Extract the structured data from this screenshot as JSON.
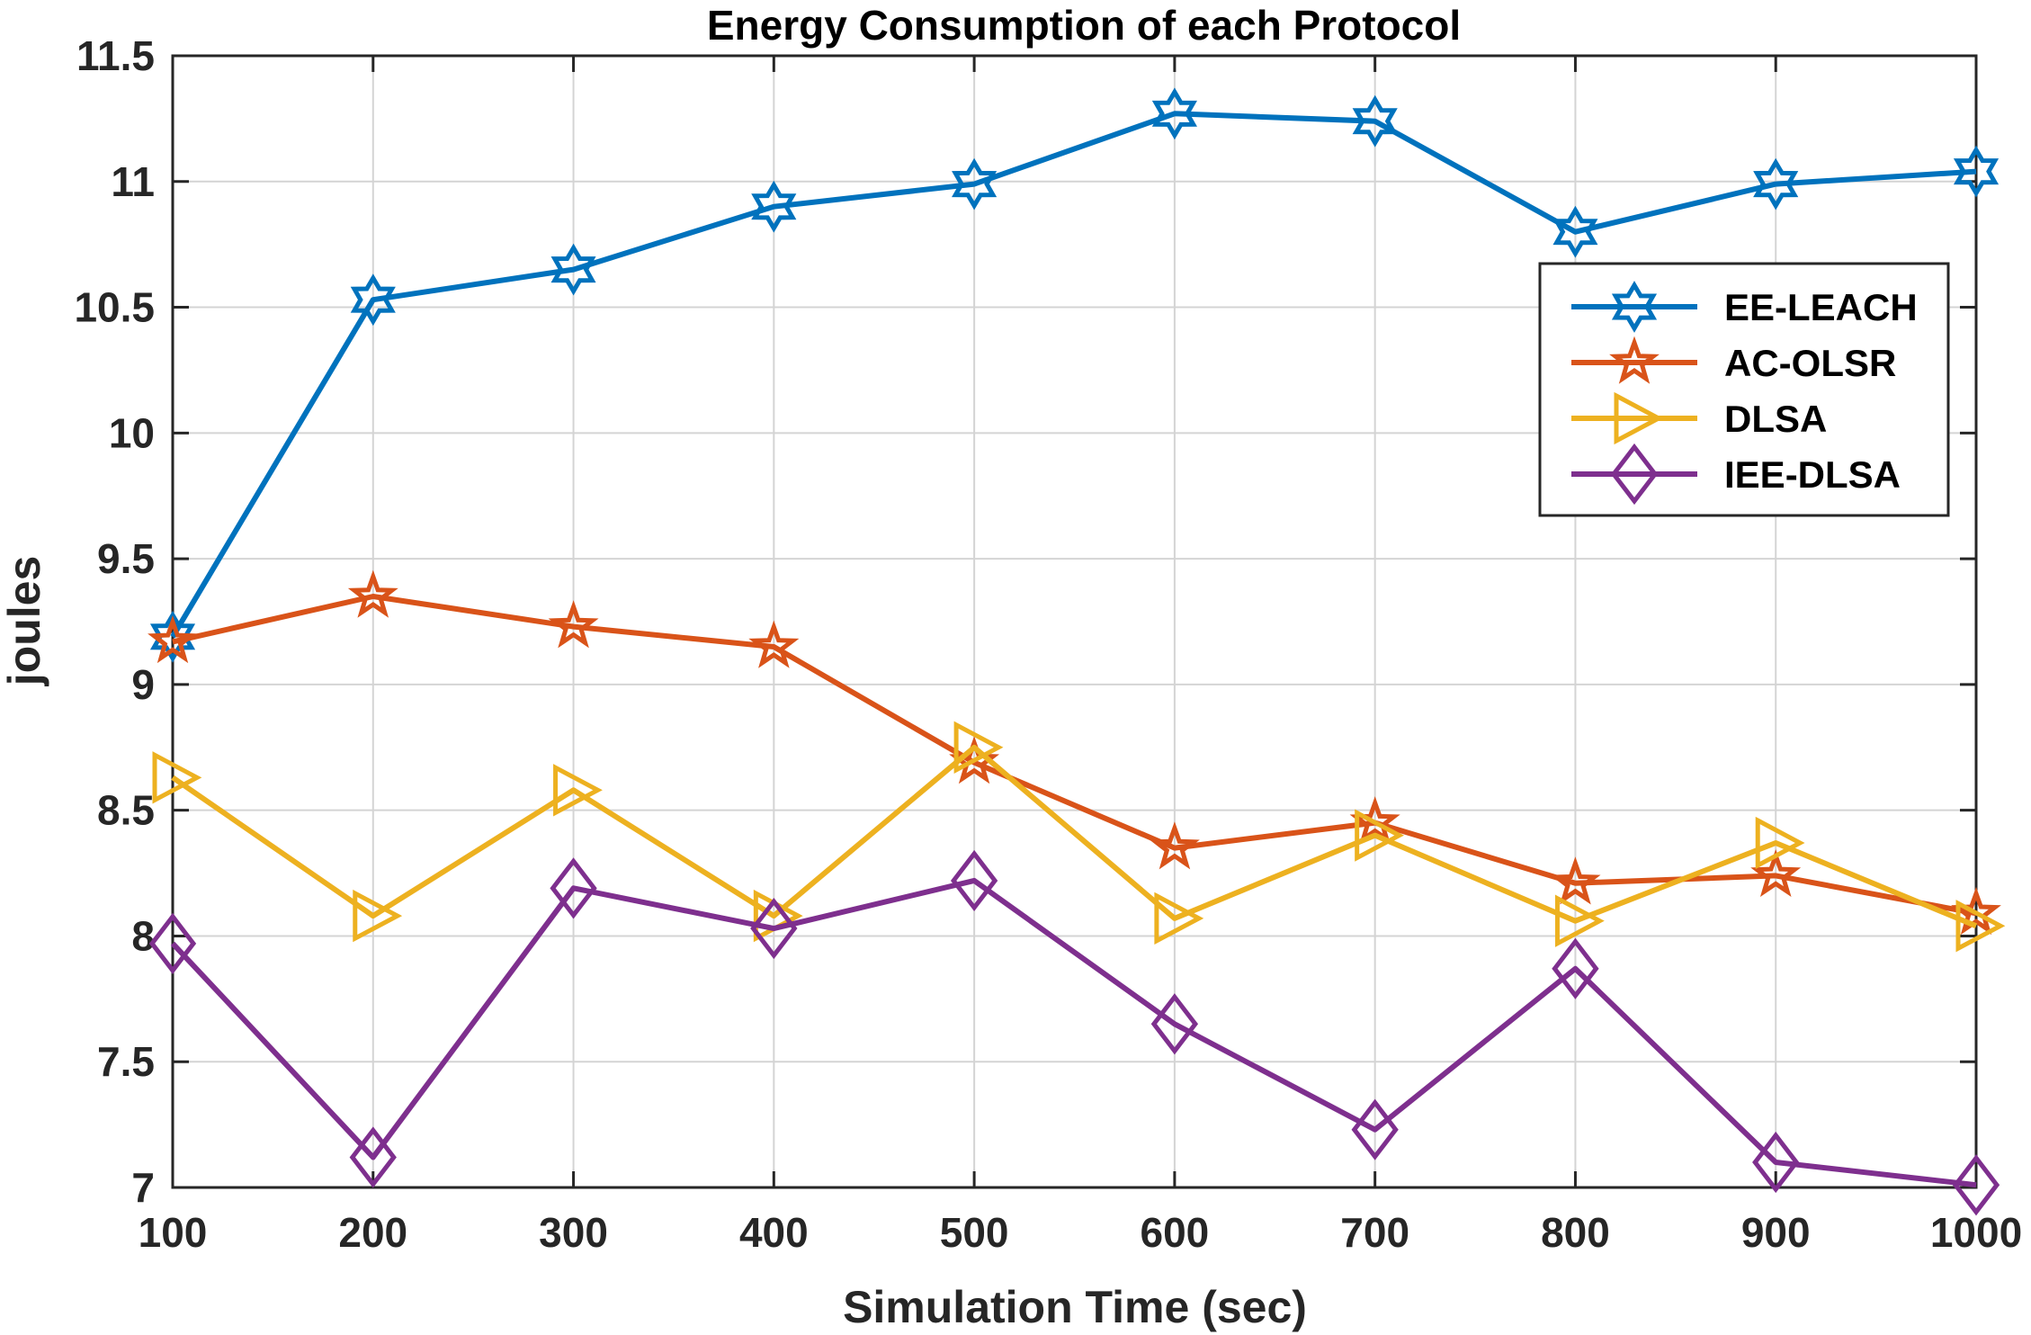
{
  "chart_data": {
    "type": "line",
    "title": "Energy Consumption of each Protocol",
    "xlabel": "Simulation Time (sec)",
    "ylabel": "joules",
    "x": [
      100,
      200,
      300,
      400,
      500,
      600,
      700,
      800,
      900,
      1000
    ],
    "xlim": [
      100,
      1000
    ],
    "ylim": [
      7,
      11.5
    ],
    "xticks": [
      "100",
      "200",
      "300",
      "400",
      "500",
      "600",
      "700",
      "800",
      "900",
      "1000"
    ],
    "yticks": [
      "7",
      "7.5",
      "8",
      "8.5",
      "9",
      "9.5",
      "10",
      "10.5",
      "11",
      "11.5"
    ],
    "grid": true,
    "legend_position": "upper-right",
    "series": [
      {
        "name": "EE-LEACH",
        "color": "#0072BD",
        "marker": "hexagram",
        "values": [
          9.19,
          10.53,
          10.65,
          10.9,
          10.99,
          11.27,
          11.24,
          10.8,
          10.99,
          11.04
        ]
      },
      {
        "name": "AC-OLSR",
        "color": "#D95319",
        "marker": "pentagram",
        "values": [
          9.17,
          9.35,
          9.23,
          9.15,
          8.69,
          8.35,
          8.45,
          8.21,
          8.24,
          8.09
        ]
      },
      {
        "name": "DLSA",
        "color": "#EDB120",
        "marker": "triangle-right",
        "values": [
          8.63,
          8.08,
          8.58,
          8.08,
          8.75,
          8.07,
          8.4,
          8.06,
          8.37,
          8.04
        ]
      },
      {
        "name": "IEE-DLSA",
        "color": "#7E2F8E",
        "marker": "diamond",
        "values": [
          7.97,
          7.12,
          8.19,
          8.03,
          8.22,
          7.65,
          7.23,
          7.87,
          7.1,
          7.01
        ]
      }
    ]
  }
}
